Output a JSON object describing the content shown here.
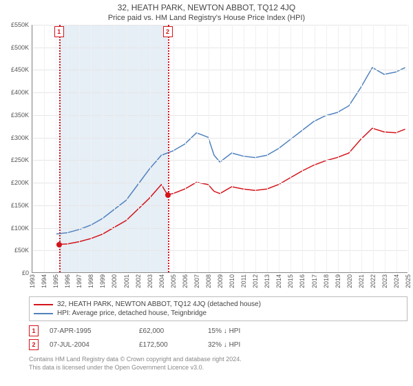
{
  "title": "32, HEATH PARK, NEWTON ABBOT, TQ12 4JQ",
  "subtitle": "Price paid vs. HM Land Registry's House Price Index (HPI)",
  "chart": {
    "type": "line",
    "background_color": "#ffffff",
    "grid_color": "#e6e6e6",
    "grid_v_color": "#f0f0f0",
    "axis_color": "#888888",
    "xlim": [
      1993,
      2025
    ],
    "ylim": [
      0,
      550000
    ],
    "yticks": [
      {
        "v": 0,
        "label": "£0"
      },
      {
        "v": 50000,
        "label": "£50K"
      },
      {
        "v": 100000,
        "label": "£100K"
      },
      {
        "v": 150000,
        "label": "£150K"
      },
      {
        "v": 200000,
        "label": "£200K"
      },
      {
        "v": 250000,
        "label": "£250K"
      },
      {
        "v": 300000,
        "label": "£300K"
      },
      {
        "v": 350000,
        "label": "£350K"
      },
      {
        "v": 400000,
        "label": "£400K"
      },
      {
        "v": 450000,
        "label": "£450K"
      },
      {
        "v": 500000,
        "label": "£500K"
      },
      {
        "v": 550000,
        "label": "£550K"
      }
    ],
    "xticks": [
      1993,
      1994,
      1995,
      1996,
      1997,
      1998,
      1999,
      2000,
      2001,
      2002,
      2003,
      2004,
      2005,
      2006,
      2007,
      2008,
      2009,
      2010,
      2011,
      2012,
      2013,
      2014,
      2015,
      2016,
      2017,
      2018,
      2019,
      2020,
      2021,
      2022,
      2023,
      2024,
      2025
    ],
    "shaded_range": {
      "start": 1995.27,
      "end": 2004.52,
      "fill": "#b6cfe5",
      "opacity": 0.35
    },
    "series": [
      {
        "name": "32, HEATH PARK, NEWTON ABBOT, TQ12 4JQ (detached house)",
        "color": "#d4131a",
        "line_width": 1.5,
        "data": [
          [
            1995.27,
            62000
          ],
          [
            1996,
            63000
          ],
          [
            1997,
            68000
          ],
          [
            1998,
            75000
          ],
          [
            1999,
            85000
          ],
          [
            2000,
            100000
          ],
          [
            2001,
            115000
          ],
          [
            2002,
            140000
          ],
          [
            2003,
            165000
          ],
          [
            2004,
            195000
          ],
          [
            2004.52,
            172500
          ],
          [
            2005,
            175000
          ],
          [
            2006,
            185000
          ],
          [
            2007,
            200000
          ],
          [
            2008,
            195000
          ],
          [
            2008.5,
            180000
          ],
          [
            2009,
            175000
          ],
          [
            2010,
            190000
          ],
          [
            2011,
            185000
          ],
          [
            2012,
            182000
          ],
          [
            2013,
            185000
          ],
          [
            2014,
            195000
          ],
          [
            2015,
            210000
          ],
          [
            2016,
            225000
          ],
          [
            2017,
            238000
          ],
          [
            2018,
            248000
          ],
          [
            2019,
            255000
          ],
          [
            2020,
            265000
          ],
          [
            2021,
            295000
          ],
          [
            2022,
            320000
          ],
          [
            2023,
            312000
          ],
          [
            2024,
            310000
          ],
          [
            2024.8,
            318000
          ]
        ]
      },
      {
        "name": "HPI: Average price, detached house, Teignbridge",
        "color": "#4f81bd",
        "line_width": 1.5,
        "data": [
          [
            1995,
            85000
          ],
          [
            1996,
            88000
          ],
          [
            1997,
            95000
          ],
          [
            1998,
            105000
          ],
          [
            1999,
            120000
          ],
          [
            2000,
            140000
          ],
          [
            2001,
            160000
          ],
          [
            2002,
            195000
          ],
          [
            2003,
            230000
          ],
          [
            2004,
            260000
          ],
          [
            2005,
            270000
          ],
          [
            2006,
            285000
          ],
          [
            2007,
            310000
          ],
          [
            2008,
            300000
          ],
          [
            2008.5,
            260000
          ],
          [
            2009,
            245000
          ],
          [
            2010,
            265000
          ],
          [
            2011,
            258000
          ],
          [
            2012,
            255000
          ],
          [
            2013,
            260000
          ],
          [
            2014,
            275000
          ],
          [
            2015,
            295000
          ],
          [
            2016,
            315000
          ],
          [
            2017,
            335000
          ],
          [
            2018,
            348000
          ],
          [
            2019,
            355000
          ],
          [
            2020,
            370000
          ],
          [
            2021,
            410000
          ],
          [
            2022,
            455000
          ],
          [
            2023,
            440000
          ],
          [
            2024,
            445000
          ],
          [
            2024.8,
            455000
          ]
        ]
      }
    ],
    "markers": [
      {
        "n": 1,
        "x": 1995.27,
        "y": 62000,
        "color": "#d4131a"
      },
      {
        "n": 2,
        "x": 2004.52,
        "y": 172500,
        "color": "#d4131a"
      }
    ],
    "marker_point_fill": "#d4131a",
    "marker_point_size": 8,
    "label_fontsize": 9,
    "title_fontsize": 12
  },
  "legend": {
    "items": [
      {
        "label": "32, HEATH PARK, NEWTON ABBOT, TQ12 4JQ (detached house)",
        "color": "#d4131a"
      },
      {
        "label": "HPI: Average price, detached house, Teignbridge",
        "color": "#4f81bd"
      }
    ]
  },
  "transactions": [
    {
      "n": "1",
      "date": "07-APR-1995",
      "price": "£62,000",
      "delta": "15% ↓ HPI",
      "color": "#d4131a"
    },
    {
      "n": "2",
      "date": "07-JUL-2004",
      "price": "£172,500",
      "delta": "32% ↓ HPI",
      "color": "#d4131a"
    }
  ],
  "footer": {
    "line1": "Contains HM Land Registry data © Crown copyright and database right 2024.",
    "line2": "This data is licensed under the Open Government Licence v3.0."
  }
}
